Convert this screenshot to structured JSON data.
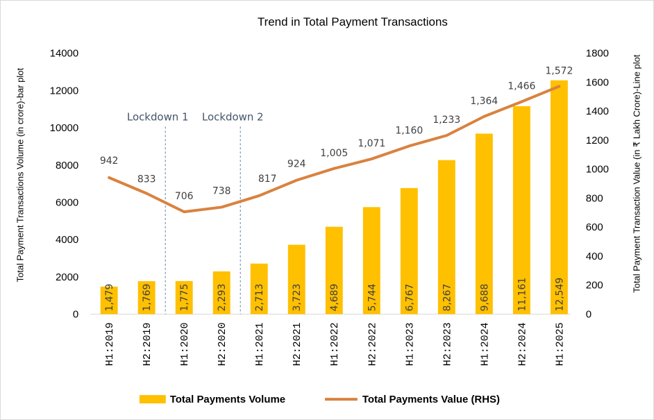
{
  "chart_data": {
    "type": "bar",
    "title": "Trend in Total Payment Transactions",
    "categories": [
      "H1:2019",
      "H2:2019",
      "H1:2020",
      "H2:2020",
      "H1:2021",
      "H2:2021",
      "H1:2022",
      "H2:2022",
      "H1:2023",
      "H2:2023",
      "H1:2024",
      "H2:2024",
      "H1:2025"
    ],
    "series": [
      {
        "name": "Total Payments Volume",
        "type": "bar",
        "axis": "left",
        "color": "#ffc000",
        "values": [
          1479,
          1769,
          1775,
          2293,
          2713,
          3723,
          4689,
          5744,
          6767,
          8267,
          9688,
          11161,
          12549
        ],
        "labels": [
          "1,479",
          "1,769",
          "1,775",
          "2,293",
          "2,713",
          "3,723",
          "4,689",
          "5,744",
          "6,767",
          "8,267",
          "9,688",
          "11,161",
          "12,549"
        ]
      },
      {
        "name": "Total Payments  Value (RHS)",
        "type": "line",
        "axis": "right",
        "color": "#d9823f",
        "values": [
          942,
          833,
          706,
          738,
          817,
          924,
          1005,
          1071,
          1160,
          1233,
          1364,
          1466,
          1572
        ],
        "labels": [
          "942",
          "833",
          "706",
          "738",
          "817",
          "924",
          "1,005",
          "1,071",
          "1,160",
          "1,233",
          "1,364",
          "1,466",
          "1,572"
        ]
      }
    ],
    "ylabel": "Total Payment Transactions Volume (in crore)-bar plot",
    "y2label": "Total Payment Transaction  Value (in ₹ Lakh Crore)-Line plot",
    "ylim": [
      0,
      14000
    ],
    "y2lim": [
      0,
      1800
    ],
    "yticks": [
      "0",
      "2000",
      "4000",
      "6000",
      "8000",
      "10000",
      "12000",
      "14000"
    ],
    "y2ticks": [
      "0",
      "200",
      "400",
      "600",
      "800",
      "1000",
      "1200",
      "1400",
      "1600",
      "1800"
    ],
    "grid": false,
    "legend_position": "bottom",
    "annotations": [
      {
        "text": "Lockdown 1",
        "after_category": "H2:2019"
      },
      {
        "text": "Lockdown 2",
        "after_category": "H2:2020"
      }
    ]
  }
}
